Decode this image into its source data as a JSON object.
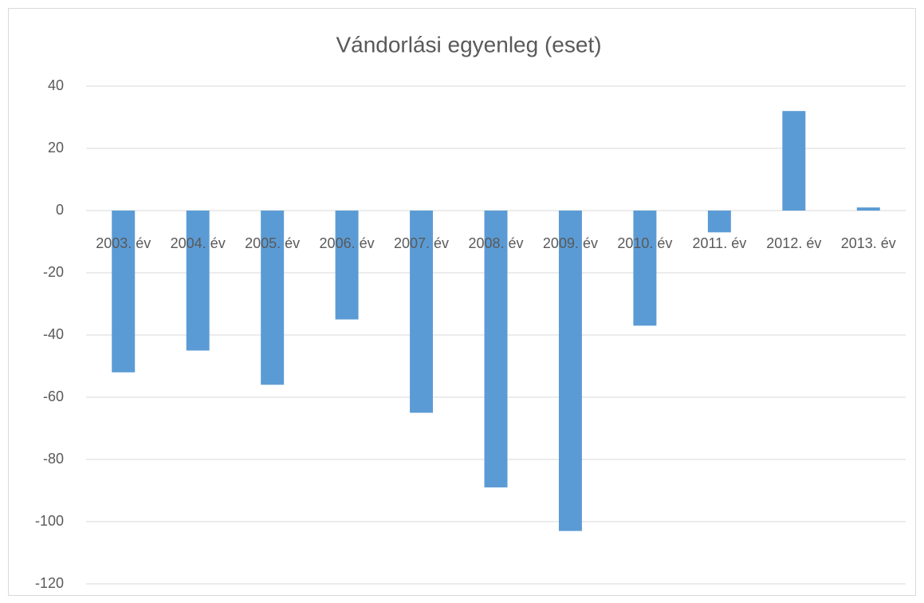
{
  "chart_data": {
    "type": "bar",
    "title": "Vándorlási egyenleg (eset)",
    "categories": [
      "2003. év",
      "2004. év",
      "2005. év",
      "2006. év",
      "2007. év",
      "2008. év",
      "2009. év",
      "2010. év",
      "2011. év",
      "2012. év",
      "2013. év"
    ],
    "values": [
      -52,
      -45,
      -56,
      -35,
      -65,
      -89,
      -103,
      -37,
      -7,
      32,
      1
    ],
    "color": "#5b9bd5",
    "ylim": [
      -120,
      40
    ],
    "yticks": [
      -120,
      -100,
      -80,
      -60,
      -40,
      -20,
      0,
      20,
      40
    ],
    "grid": true
  }
}
